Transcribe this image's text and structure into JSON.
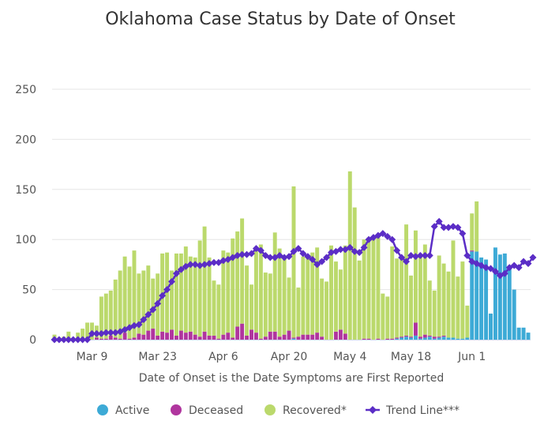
{
  "chart_data": {
    "type": "bar",
    "stacked": true,
    "title": "Oklahoma Case Status by Date of Onset",
    "xlabel": "Date of Onset is the Date Symptoms are First Reported",
    "ylabel": "",
    "ylim": [
      0,
      280
    ],
    "yticks": [
      0,
      50,
      100,
      150,
      200,
      250
    ],
    "grid": true,
    "legend_position": "bottom",
    "start_date": "Mar 1",
    "xtick_labels": [
      {
        "label": "Mar 9",
        "index": 8
      },
      {
        "label": "Mar 23",
        "index": 22
      },
      {
        "label": "Apr 6",
        "index": 36
      },
      {
        "label": "Apr 20",
        "index": 50
      },
      {
        "label": "May 4",
        "index": 63
      },
      {
        "label": "May 18",
        "index": 76
      },
      {
        "label": "Jun 1",
        "index": 89
      }
    ],
    "series": [
      {
        "name": "Active",
        "color": "#3daad6",
        "kind": "bar",
        "values": [
          0,
          0,
          0,
          0,
          0,
          0,
          0,
          0,
          0,
          0,
          0,
          0,
          0,
          0,
          0,
          0,
          0,
          0,
          0,
          0,
          0,
          0,
          0,
          0,
          0,
          0,
          0,
          0,
          0,
          0,
          0,
          0,
          0,
          0,
          0,
          0,
          0,
          0,
          0,
          0,
          0,
          0,
          0,
          0,
          0,
          0,
          0,
          0,
          0,
          0,
          0,
          1,
          0,
          0,
          0,
          0,
          0,
          0,
          0,
          0,
          0,
          0,
          0,
          0,
          0,
          0,
          0,
          0,
          0,
          0,
          0,
          0,
          0,
          1,
          2,
          3,
          2,
          4,
          1,
          2,
          3,
          1,
          2,
          3,
          2,
          2,
          1,
          1,
          2,
          88,
          88,
          82,
          80,
          26,
          92,
          85,
          86,
          74,
          50,
          12,
          12,
          7
        ]
      },
      {
        "name": "Deceased",
        "color": "#b0359e",
        "kind": "bar",
        "values": [
          0,
          0,
          0,
          0,
          0,
          0,
          0,
          0,
          0,
          2,
          1,
          1,
          4,
          2,
          1,
          7,
          1,
          2,
          6,
          5,
          9,
          11,
          4,
          8,
          7,
          10,
          4,
          9,
          7,
          8,
          5,
          3,
          8,
          4,
          4,
          1,
          5,
          7,
          2,
          13,
          16,
          4,
          10,
          7,
          1,
          3,
          8,
          8,
          3,
          5,
          9,
          1,
          3,
          5,
          5,
          5,
          7,
          3,
          0,
          0,
          8,
          10,
          6,
          0,
          0,
          0,
          1,
          1,
          0,
          1,
          0,
          1,
          1,
          1,
          1,
          1,
          1,
          13,
          2,
          3,
          1,
          2,
          1,
          1,
          0,
          0,
          0,
          0,
          0,
          1,
          0,
          0,
          0,
          0,
          0,
          0,
          0,
          0,
          0,
          0,
          0,
          0,
          0
        ]
      },
      {
        "name": "Recovered*",
        "color": "#bbd96c",
        "kind": "bar",
        "values": [
          5,
          0,
          3,
          8,
          0,
          7,
          11,
          17,
          17,
          12,
          42,
          45,
          45,
          58,
          68,
          76,
          72,
          87,
          60,
          64,
          65,
          50,
          62,
          78,
          80,
          59,
          82,
          77,
          86,
          75,
          77,
          96,
          105,
          78,
          55,
          54,
          84,
          80,
          99,
          95,
          105,
          70,
          45,
          83,
          94,
          64,
          58,
          99,
          88,
          79,
          53,
          151,
          49,
          78,
          80,
          82,
          85,
          58,
          58,
          94,
          70,
          60,
          88,
          168,
          132,
          79,
          99,
          101,
          101,
          101,
          46,
          42,
          92,
          79,
          78,
          111,
          61,
          92,
          80,
          90,
          55,
          46,
          81,
          72,
          66,
          97,
          62,
          77,
          32,
          37,
          50,
          0,
          0,
          0,
          0,
          0,
          0,
          0,
          0,
          0,
          0,
          0,
          0
        ]
      },
      {
        "name": "Trend Line***",
        "color": "#5b2dc6",
        "kind": "line",
        "values": [
          0,
          0,
          0,
          0,
          0,
          0,
          0,
          0,
          6,
          6,
          6,
          7,
          7,
          7,
          8,
          10,
          12,
          14,
          15,
          20,
          25,
          30,
          36,
          44,
          50,
          58,
          66,
          70,
          73,
          75,
          75,
          74,
          75,
          76,
          77,
          77,
          79,
          80,
          82,
          84,
          85,
          85,
          86,
          91,
          89,
          84,
          82,
          82,
          84,
          82,
          83,
          88,
          91,
          86,
          83,
          80,
          75,
          78,
          82,
          87,
          88,
          90,
          90,
          92,
          88,
          87,
          92,
          100,
          102,
          104,
          106,
          103,
          100,
          89,
          82,
          78,
          84,
          83,
          84,
          84,
          84,
          113,
          118,
          112,
          112,
          113,
          112,
          106,
          84,
          78,
          76,
          74,
          72,
          71,
          68,
          64,
          66,
          72,
          74,
          72,
          78,
          76,
          82
        ]
      }
    ]
  }
}
